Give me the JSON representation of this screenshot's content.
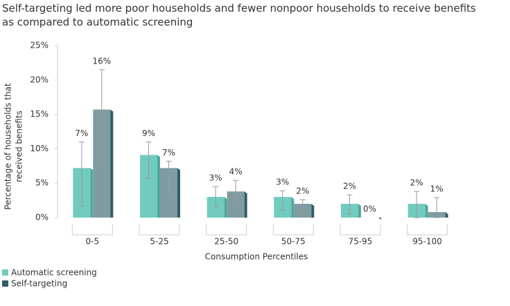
{
  "chart_data": {
    "type": "bar",
    "title": "Self-targeting led more poor households and fewer nonpoor households to receive benefits as compared to automatic screening",
    "ylabel": [
      "Percentage of households that",
      "received benefits"
    ],
    "xlabel": "Consumption Percentiles",
    "categories": [
      "0-5",
      "5-25",
      "25-50",
      "50-75",
      "75-95",
      "95-100"
    ],
    "series": [
      {
        "name": "Automatic screening",
        "color": "#72cbbf",
        "side_color": "#4fa99d",
        "values": [
          7.2,
          9.1,
          3.0,
          3.0,
          2.0,
          2.0
        ],
        "value_labels": [
          "7%",
          "9%",
          "3%",
          "3%",
          "2%",
          "2%"
        ],
        "ci_low": [
          1.7,
          5.7,
          1.5,
          1.1,
          0.5,
          0
        ],
        "ci_high": [
          11.0,
          11.0,
          4.5,
          3.9,
          3.3,
          3.8
        ]
      },
      {
        "name": "Self-targeting",
        "color": "#7f9ca1",
        "side_color": "#2f5d66",
        "values": [
          15.7,
          7.2,
          3.8,
          2.0,
          0,
          0.8
        ],
        "value_labels": [
          "16%",
          "7%",
          "4%",
          "2%",
          "0%",
          "1%"
        ],
        "ci_low": [
          7.9,
          3.6,
          2.1,
          0.5,
          null,
          0
        ],
        "ci_high": [
          21.5,
          8.2,
          5.4,
          2.6,
          null,
          2.9
        ]
      }
    ],
    "ylim": [
      0,
      25
    ],
    "yticks": [
      {
        "value": 0,
        "label": "0%"
      },
      {
        "value": 5,
        "label": "5%"
      },
      {
        "value": 10,
        "label": "10%"
      },
      {
        "value": 15,
        "label": "15%"
      },
      {
        "value": 20,
        "label": "20%"
      },
      {
        "value": 25,
        "label": "25%"
      }
    ],
    "grid": false,
    "legend": "bottom-left"
  }
}
